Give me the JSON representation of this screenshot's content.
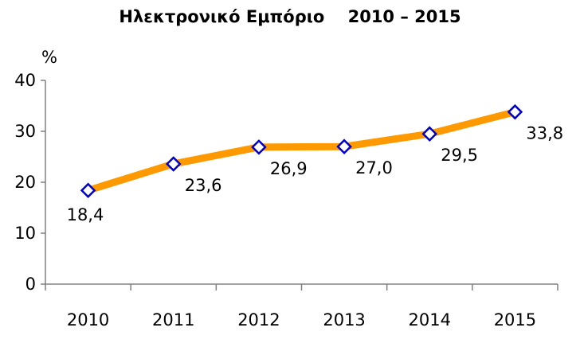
{
  "chart_data": {
    "type": "line",
    "title": "Ηλεκτρονικό Εμπόριο    2010 – 2015",
    "unit_label": "%",
    "categories": [
      "2010",
      "2011",
      "2012",
      "2013",
      "2014",
      "2015"
    ],
    "series": [
      {
        "values": [
          18.4,
          23.6,
          26.9,
          27.0,
          29.5,
          33.8
        ],
        "labels": [
          "18,4",
          "23,6",
          "26,9",
          "27,0",
          "29,5",
          "33,8"
        ],
        "line_color": "#FF9900",
        "marker_color": "#0000CC",
        "marker": "diamond"
      }
    ],
    "yticks": [
      "0",
      "10",
      "20",
      "30",
      "40"
    ],
    "ylim": [
      0,
      40
    ],
    "grid": false,
    "legend": "none"
  }
}
